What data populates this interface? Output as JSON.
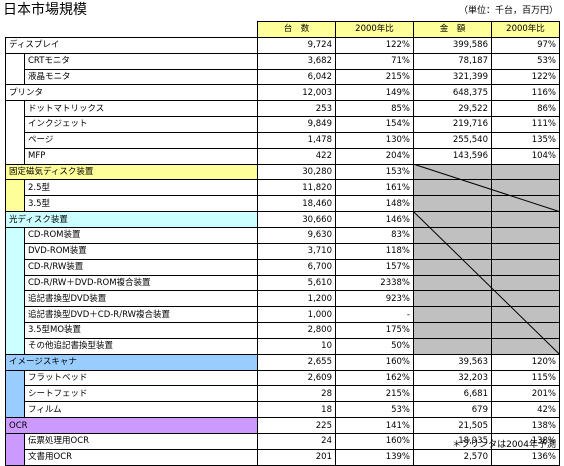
{
  "title": "日本市場規模",
  "unit_note": "（単位：千台，百万円）",
  "footnote": "＊プリンタは2004年予測",
  "headers": {
    "units": "台　数",
    "units_yoy": "2000年比",
    "amount": "金　額",
    "amount_yoy": "2000年比"
  },
  "colors": {
    "display": "#ff99cc",
    "printer": "#ffcc99",
    "hdd": "#ffff99",
    "optical": "#ccffff",
    "scanner": "#99ccff",
    "ocr": "#cc99ff",
    "header": "#ffff99",
    "unavailable": "#c0c0c0"
  },
  "rows": [
    {
      "type": "cat",
      "cat": "display",
      "name": "ディスプレイ",
      "units": "9,724",
      "units_yoy": "122%",
      "amount": "399,586",
      "amount_yoy": "97%"
    },
    {
      "type": "sub",
      "cat": "display",
      "name": "CRTモニタ",
      "units": "3,682",
      "units_yoy": "71%",
      "amount": "78,187",
      "amount_yoy": "53%"
    },
    {
      "type": "sub",
      "cat": "display",
      "name": "液晶モニタ",
      "units": "6,042",
      "units_yoy": "215%",
      "amount": "321,399",
      "amount_yoy": "122%"
    },
    {
      "type": "cat",
      "cat": "printer",
      "name": "プリンタ",
      "units": "12,003",
      "units_yoy": "149%",
      "amount": "648,375",
      "amount_yoy": "116%"
    },
    {
      "type": "sub",
      "cat": "printer",
      "name": "ドットマトリックス",
      "units": "253",
      "units_yoy": "85%",
      "amount": "29,522",
      "amount_yoy": "86%"
    },
    {
      "type": "sub",
      "cat": "printer",
      "name": "インクジェット",
      "units": "9,849",
      "units_yoy": "154%",
      "amount": "219,716",
      "amount_yoy": "111%"
    },
    {
      "type": "sub",
      "cat": "printer",
      "name": "ページ",
      "units": "1,478",
      "units_yoy": "130%",
      "amount": "255,540",
      "amount_yoy": "135%"
    },
    {
      "type": "sub",
      "cat": "printer",
      "name": "MFP",
      "units": "422",
      "units_yoy": "204%",
      "amount": "143,596",
      "amount_yoy": "104%"
    },
    {
      "type": "cat",
      "cat": "hdd",
      "name": "固定磁気ディスク装置",
      "units": "30,280",
      "units_yoy": "153%",
      "amount": "",
      "amount_yoy": "",
      "gray": true
    },
    {
      "type": "sub",
      "cat": "hdd",
      "name": "2.5型",
      "units": "11,820",
      "units_yoy": "161%",
      "amount": "",
      "amount_yoy": "",
      "gray": true
    },
    {
      "type": "sub",
      "cat": "hdd",
      "name": "3.5型",
      "units": "18,460",
      "units_yoy": "148%",
      "amount": "",
      "amount_yoy": "",
      "gray": true
    },
    {
      "type": "cat",
      "cat": "optical",
      "name": "光ディスク装置",
      "units": "30,660",
      "units_yoy": "146%",
      "amount": "",
      "amount_yoy": "",
      "gray": true
    },
    {
      "type": "sub",
      "cat": "optical",
      "name": "CD-ROM装置",
      "units": "9,630",
      "units_yoy": "83%",
      "amount": "",
      "amount_yoy": "",
      "gray": true
    },
    {
      "type": "sub",
      "cat": "optical",
      "name": "DVD-ROM装置",
      "units": "3,710",
      "units_yoy": "118%",
      "amount": "",
      "amount_yoy": "",
      "gray": true
    },
    {
      "type": "sub",
      "cat": "optical",
      "name": "CD-R/RW装置",
      "units": "6,700",
      "units_yoy": "157%",
      "amount": "",
      "amount_yoy": "",
      "gray": true
    },
    {
      "type": "sub",
      "cat": "optical",
      "name": "CD-R/RW＋DVD-ROM複合装置",
      "units": "5,610",
      "units_yoy": "2338%",
      "amount": "",
      "amount_yoy": "",
      "gray": true
    },
    {
      "type": "sub",
      "cat": "optical",
      "name": "追記書換型DVD装置",
      "units": "1,200",
      "units_yoy": "923%",
      "amount": "",
      "amount_yoy": "",
      "gray": true
    },
    {
      "type": "sub",
      "cat": "optical",
      "name": "追記書換型DVD＋CD-R/RW複合装置",
      "units": "1,000",
      "units_yoy": "-",
      "amount": "",
      "amount_yoy": "",
      "gray": true
    },
    {
      "type": "sub",
      "cat": "optical",
      "name": "3.5型MO装置",
      "units": "2,800",
      "units_yoy": "175%",
      "amount": "",
      "amount_yoy": "",
      "gray": true
    },
    {
      "type": "sub",
      "cat": "optical",
      "name": "その他追記書換型装置",
      "units": "10",
      "units_yoy": "50%",
      "amount": "",
      "amount_yoy": "",
      "gray": true
    },
    {
      "type": "cat",
      "cat": "scanner",
      "name": "イメージスキャナ",
      "units": "2,655",
      "units_yoy": "160%",
      "amount": "39,563",
      "amount_yoy": "120%"
    },
    {
      "type": "sub",
      "cat": "scanner",
      "name": "フラットベッド",
      "units": "2,609",
      "units_yoy": "162%",
      "amount": "32,203",
      "amount_yoy": "115%"
    },
    {
      "type": "sub",
      "cat": "scanner",
      "name": "シートフェッド",
      "units": "28",
      "units_yoy": "215%",
      "amount": "6,681",
      "amount_yoy": "201%"
    },
    {
      "type": "sub",
      "cat": "scanner",
      "name": "フィルム",
      "units": "18",
      "units_yoy": "53%",
      "amount": "679",
      "amount_yoy": "42%"
    },
    {
      "type": "cat",
      "cat": "ocr",
      "name": "OCR",
      "units": "225",
      "units_yoy": "141%",
      "amount": "21,505",
      "amount_yoy": "138%"
    },
    {
      "type": "sub",
      "cat": "ocr",
      "name": "伝票処理用OCR",
      "units": "24",
      "units_yoy": "160%",
      "amount": "18,935",
      "amount_yoy": "138%"
    },
    {
      "type": "sub",
      "cat": "ocr",
      "name": "文書用OCR",
      "units": "201",
      "units_yoy": "139%",
      "amount": "2,570",
      "amount_yoy": "136%"
    }
  ]
}
